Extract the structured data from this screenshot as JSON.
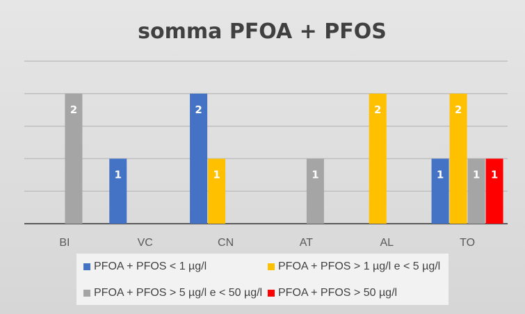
{
  "chart_data": {
    "type": "bar",
    "title": "somma PFOA + PFOS",
    "categories": [
      "BI",
      "VC",
      "CN",
      "AT",
      "AL",
      "TO"
    ],
    "series": [
      {
        "name": "PFOA + PFOS < 1 µg/l",
        "color": "#4472c4",
        "values": [
          null,
          1,
          2,
          null,
          null,
          1
        ]
      },
      {
        "name": "PFOA + PFOS > 1 µg/l e < 5 µg/l",
        "color": "#ffc000",
        "values": [
          null,
          null,
          1,
          null,
          2,
          2
        ]
      },
      {
        "name": "PFOA + PFOS > 5 µg/l e < 50 µg/l",
        "color": "#a5a5a5",
        "values": [
          2,
          null,
          null,
          1,
          null,
          1
        ]
      },
      {
        "name": "PFOA + PFOS > 50 µg/l",
        "color": "#ff0000",
        "values": [
          null,
          null,
          null,
          null,
          null,
          1
        ]
      }
    ],
    "ylim": [
      0,
      2
    ],
    "grid": true,
    "legend_position": "bottom"
  }
}
